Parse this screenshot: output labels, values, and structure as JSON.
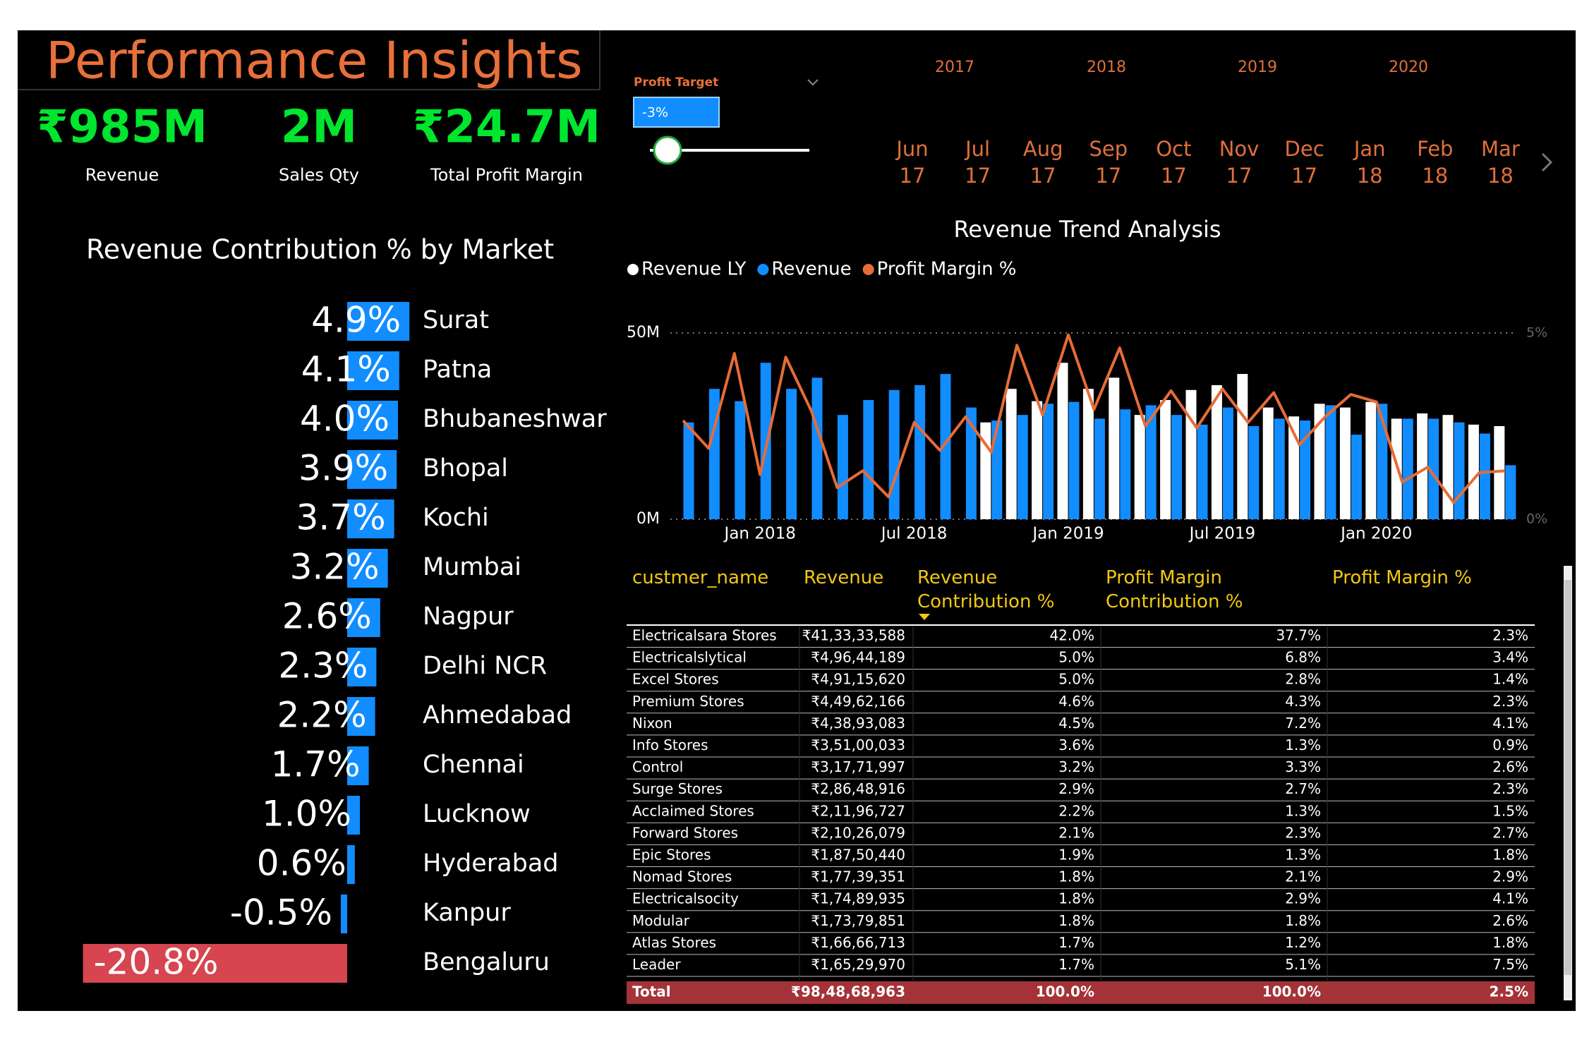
{
  "header": {
    "title": "Performance Insights"
  },
  "kpis": [
    {
      "value": "₹985M",
      "label": "Revenue"
    },
    {
      "value": "2M",
      "label": "Sales Qty"
    },
    {
      "value": "₹24.7M",
      "label": "Total Profit Margin"
    }
  ],
  "slicer": {
    "label": "Profit Target",
    "value": "-3%"
  },
  "timeline": {
    "years": [
      "2017",
      "2018",
      "2019",
      "2020"
    ],
    "months": [
      {
        "month": "Jun",
        "year": "17"
      },
      {
        "month": "Jul",
        "year": "17"
      },
      {
        "month": "Aug",
        "year": "17"
      },
      {
        "month": "Sep",
        "year": "17"
      },
      {
        "month": "Oct",
        "year": "17"
      },
      {
        "month": "Nov",
        "year": "17"
      },
      {
        "month": "Dec",
        "year": "17"
      },
      {
        "month": "Jan",
        "year": "18"
      },
      {
        "month": "Feb",
        "year": "18"
      },
      {
        "month": "Mar",
        "year": "18"
      }
    ]
  },
  "chart_data": [
    {
      "type": "bar",
      "orientation": "horizontal",
      "title": "Revenue Contribution % by Market",
      "categories": [
        "Surat",
        "Patna",
        "Bhubaneshwar",
        "Bhopal",
        "Kochi",
        "Mumbai",
        "Nagpur",
        "Delhi NCR",
        "Ahmedabad",
        "Chennai",
        "Lucknow",
        "Hyderabad",
        "Kanpur",
        "Bengaluru"
      ],
      "values": [
        4.9,
        4.1,
        4.0,
        3.9,
        3.7,
        3.2,
        2.6,
        2.3,
        2.2,
        1.7,
        1.0,
        0.6,
        -0.5,
        -20.8
      ],
      "value_labels": [
        "4.9%",
        "4.1%",
        "4.0%",
        "3.9%",
        "3.7%",
        "3.2%",
        "2.6%",
        "2.3%",
        "2.2%",
        "1.7%",
        "1.0%",
        "0.6%",
        "-0.5%",
        "-20.8%"
      ],
      "colors": [
        "#118dff",
        "#118dff",
        "#118dff",
        "#118dff",
        "#118dff",
        "#118dff",
        "#118dff",
        "#118dff",
        "#118dff",
        "#118dff",
        "#118dff",
        "#118dff",
        "#118dff",
        "#d64550"
      ]
    },
    {
      "type": "combo",
      "title": "Revenue Trend Analysis",
      "categories": [
        null,
        null,
        null,
        "Jan 2018",
        null,
        null,
        null,
        null,
        null,
        "Jul 2018",
        null,
        null,
        null,
        null,
        null,
        "Jan 2019",
        null,
        null,
        null,
        null,
        null,
        "Jul 2019",
        null,
        null,
        null,
        null,
        null,
        "Jan 2020",
        null,
        null,
        null,
        null,
        null
      ],
      "series": [
        {
          "name": "Revenue LY",
          "color": "#ffffff",
          "type": "bar",
          "values": [
            null,
            null,
            null,
            null,
            null,
            null,
            null,
            null,
            null,
            null,
            null,
            null,
            26,
            35,
            31.7,
            42,
            35,
            38,
            28,
            32,
            34.7,
            36,
            39,
            30,
            27.6,
            31,
            30,
            31.5,
            27,
            28.4,
            28,
            25.4,
            25
          ]
        },
        {
          "name": "Revenue",
          "color": "#118dff",
          "type": "bar",
          "values": [
            26,
            35,
            31.7,
            42,
            35,
            38,
            28,
            32,
            34.7,
            36,
            39,
            30,
            26.5,
            28,
            31,
            31.5,
            27,
            29.5,
            30.6,
            28,
            25.4,
            30,
            25,
            27,
            26.5,
            30.6,
            22.7,
            31,
            27,
            27,
            26,
            23,
            14.5
          ]
        },
        {
          "name": "Profit Margin %",
          "color": "#e66c37",
          "type": "line",
          "axis": "y2",
          "values": [
            2.65,
            1.9,
            4.45,
            1.2,
            4.35,
            2.9,
            0.85,
            1.3,
            0.6,
            2.6,
            1.85,
            2.75,
            1.8,
            4.67,
            2.8,
            4.95,
            2.95,
            4.6,
            2.5,
            3.45,
            2.45,
            3.5,
            2.6,
            3.4,
            2.0,
            2.75,
            3.35,
            3.15,
            1.0,
            1.4,
            0.45,
            1.25,
            1.3
          ]
        }
      ],
      "ylim": [
        0,
        50
      ],
      "yticks": [
        {
          "value": 0,
          "label": "0M"
        },
        {
          "value": 50,
          "label": "50M"
        }
      ],
      "y2lim": [
        0,
        5
      ],
      "y2ticks": [
        {
          "value": 0,
          "label": "0%"
        },
        {
          "value": 5,
          "label": "5%"
        }
      ],
      "legend": "top-left",
      "grid": true
    }
  ],
  "table": {
    "columns": [
      "custmer_name",
      "Revenue",
      "Revenue Contribution %",
      "Profit Margin Contribution %",
      "Profit Margin %"
    ],
    "rows": [
      [
        "Electricalsara Stores",
        "₹41,33,33,588",
        "42.0%",
        "37.7%",
        "2.3%"
      ],
      [
        "Electricalslytical",
        "₹4,96,44,189",
        "5.0%",
        "6.8%",
        "3.4%"
      ],
      [
        "Excel Stores",
        "₹4,91,15,620",
        "5.0%",
        "2.8%",
        "1.4%"
      ],
      [
        "Premium Stores",
        "₹4,49,62,166",
        "4.6%",
        "4.3%",
        "2.3%"
      ],
      [
        "Nixon",
        "₹4,38,93,083",
        "4.5%",
        "7.2%",
        "4.1%"
      ],
      [
        "Info Stores",
        "₹3,51,00,033",
        "3.6%",
        "1.3%",
        "0.9%"
      ],
      [
        "Control",
        "₹3,17,71,997",
        "3.2%",
        "3.3%",
        "2.6%"
      ],
      [
        "Surge Stores",
        "₹2,86,48,916",
        "2.9%",
        "2.7%",
        "2.3%"
      ],
      [
        "Acclaimed Stores",
        "₹2,11,96,727",
        "2.2%",
        "1.3%",
        "1.5%"
      ],
      [
        "Forward Stores",
        "₹2,10,26,079",
        "2.1%",
        "2.3%",
        "2.7%"
      ],
      [
        "Epic Stores",
        "₹1,87,50,440",
        "1.9%",
        "1.3%",
        "1.8%"
      ],
      [
        "Nomad Stores",
        "₹1,77,39,351",
        "1.8%",
        "2.1%",
        "2.9%"
      ],
      [
        "Electricalsocity",
        "₹1,74,89,935",
        "1.8%",
        "2.9%",
        "4.1%"
      ],
      [
        "Modular",
        "₹1,73,79,851",
        "1.8%",
        "1.8%",
        "2.6%"
      ],
      [
        "Atlas Stores",
        "₹1,66,66,713",
        "1.7%",
        "1.2%",
        "1.8%"
      ],
      [
        "Leader",
        "₹1,65,29,970",
        "1.7%",
        "5.1%",
        "7.5%"
      ]
    ],
    "total": [
      "Total",
      "₹98,48,68,963",
      "100.0%",
      "100.0%",
      "2.5%"
    ]
  }
}
